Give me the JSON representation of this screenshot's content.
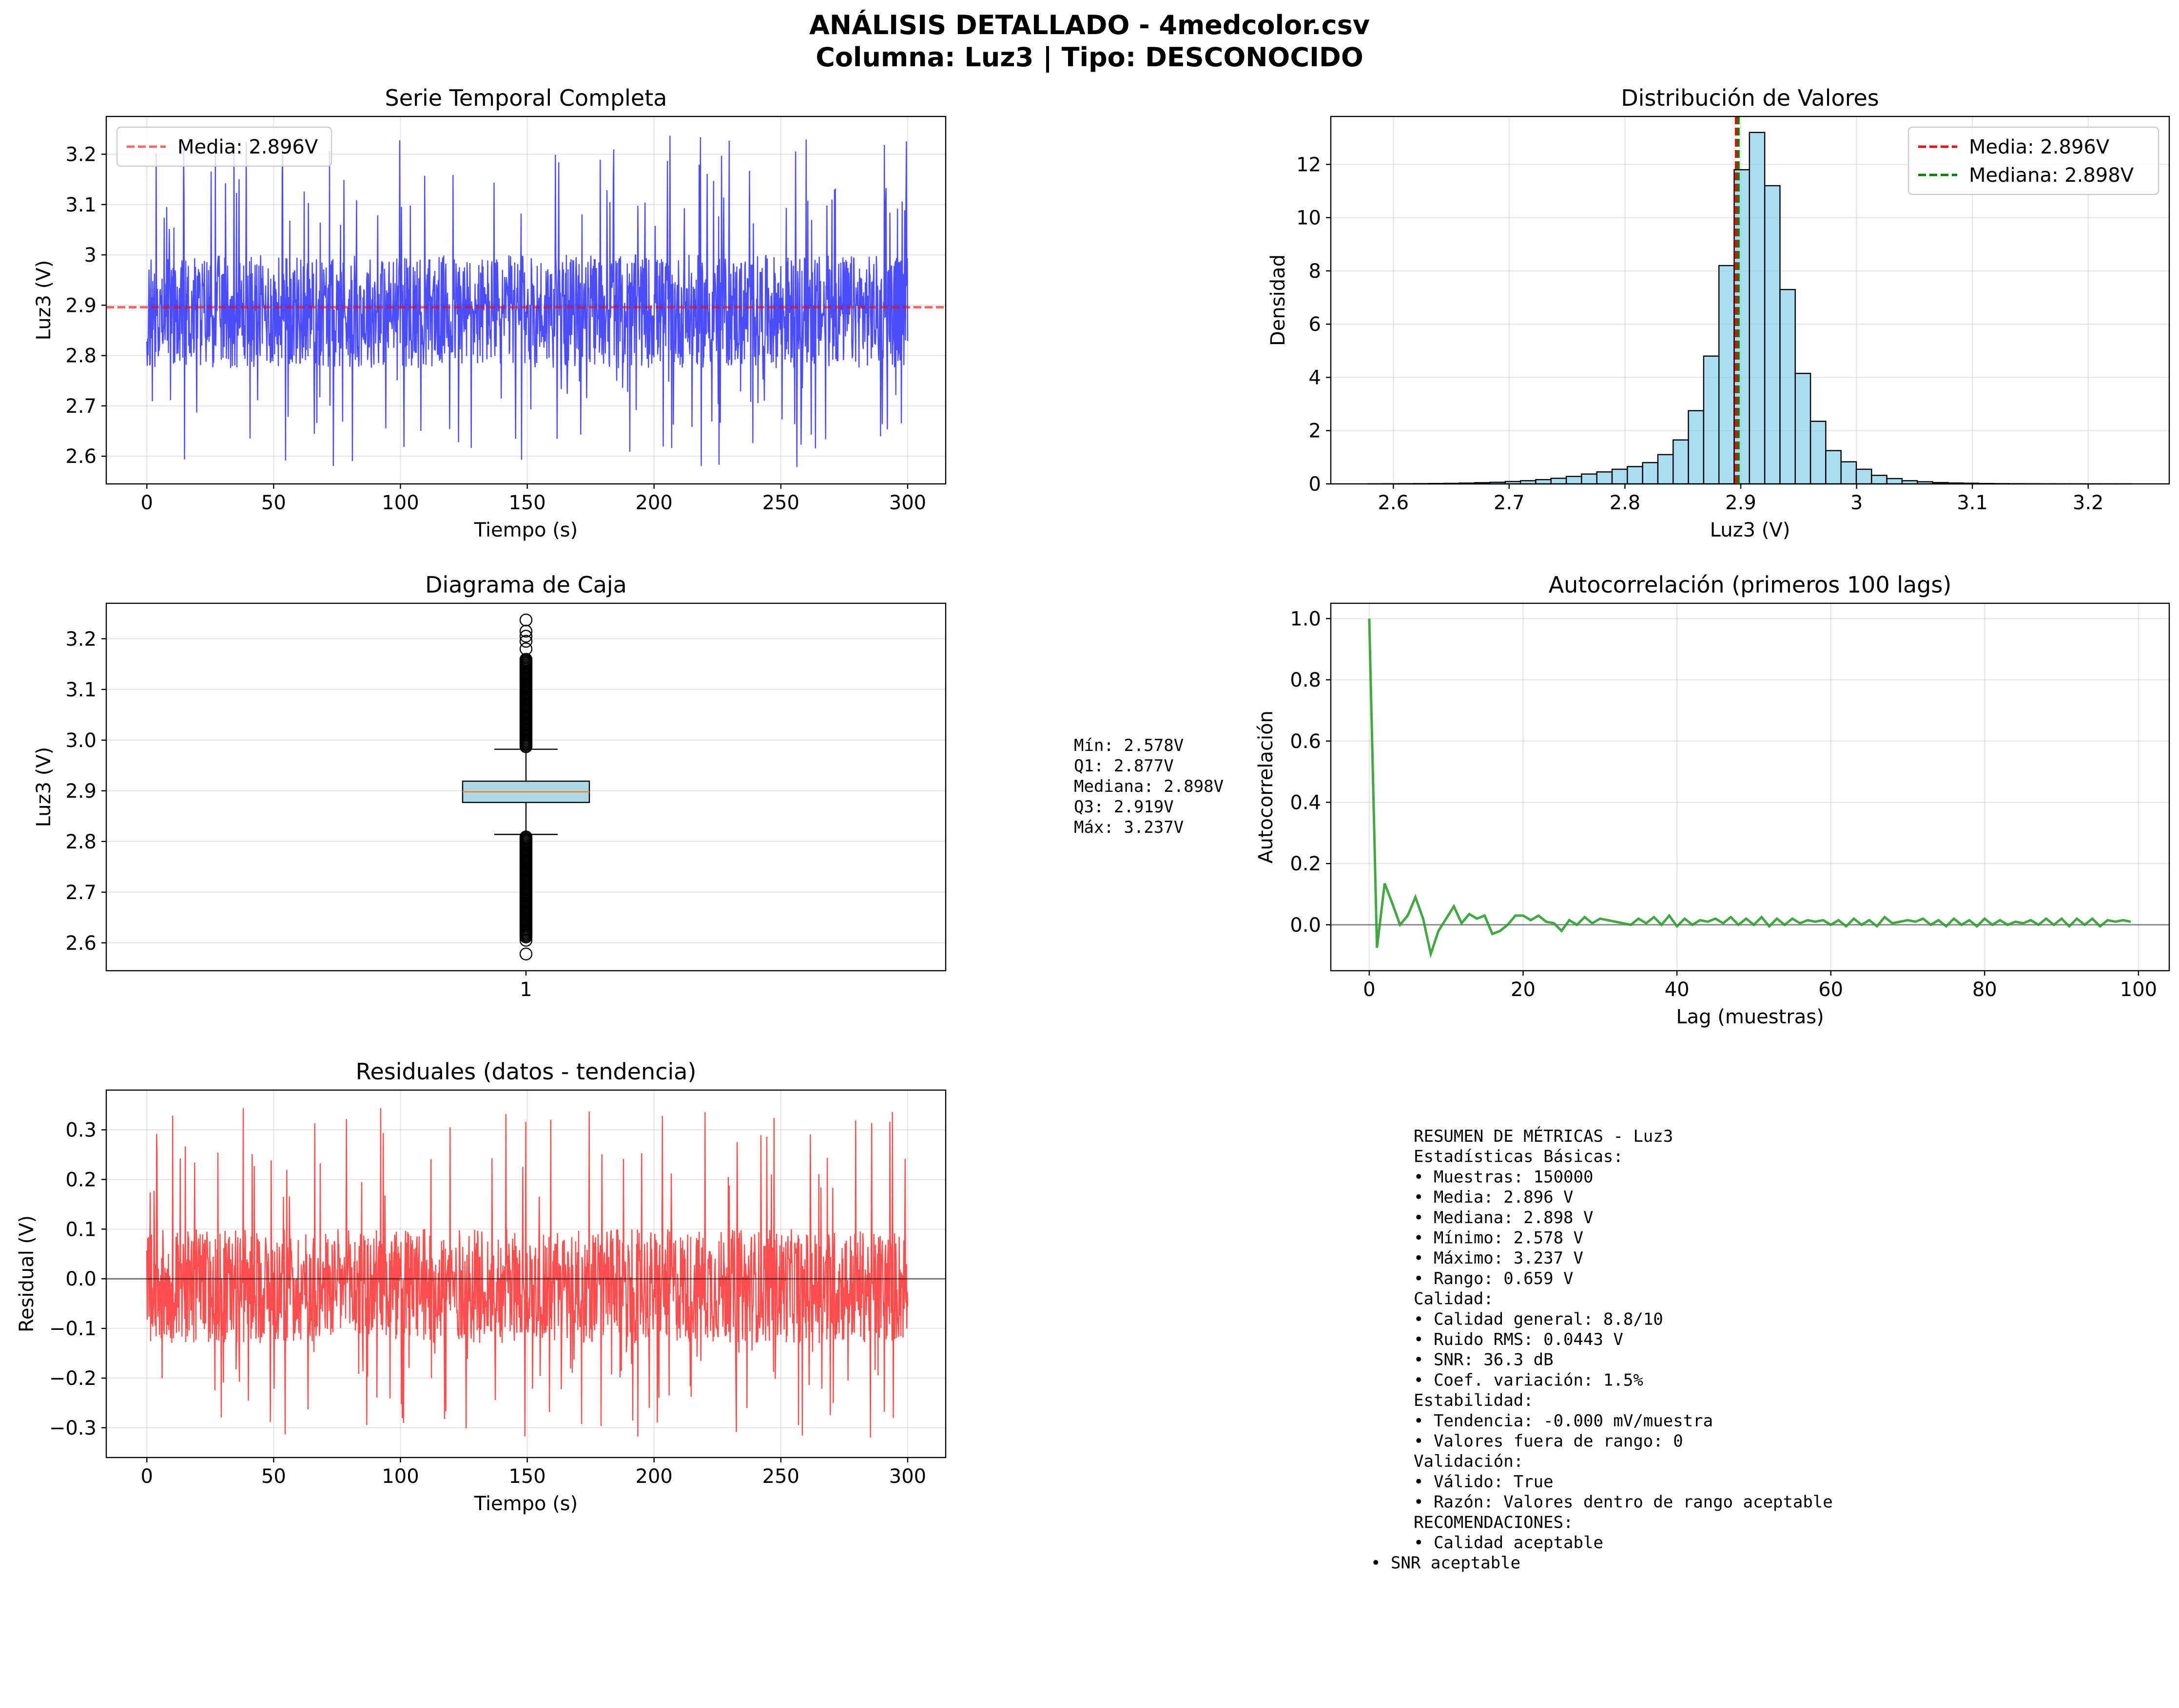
{
  "figure": {
    "title_line1": "ANÁLISIS DETALLADO - 4medcolor.csv",
    "title_line2": "Columna: Luz3 | Tipo: DESCONOCIDO"
  },
  "colors": {
    "series_blue": "#0000ff",
    "mean_red": "#ff0000",
    "median_green": "#008000",
    "hist_fill": "#87ceeb",
    "acf_green": "#2ca02c",
    "residual_red": "#ff0000",
    "box_fill": "#add8e6",
    "box_median": "#ff7f0e"
  },
  "chart_data": [
    {
      "id": "timeseries",
      "type": "line",
      "title": "Serie Temporal Completa",
      "xlabel": "Tiempo (s)",
      "ylabel": "Luz3 (V)",
      "xlim": [
        -16,
        315
      ],
      "ylim": [
        2.545,
        3.275
      ],
      "xticks": [
        0,
        50,
        100,
        150,
        200,
        250,
        300
      ],
      "yticks": [
        2.6,
        2.7,
        2.8,
        2.9,
        3.0,
        3.1,
        3.2
      ],
      "series": [
        {
          "name": "Luz3",
          "x_range": [
            0,
            300
          ],
          "mean": 2.896,
          "core_band": [
            2.775,
            3.0
          ],
          "min": 2.578,
          "max": 3.237,
          "samples": 150000
        }
      ],
      "hline": {
        "y": 2.896,
        "label": "Media: 2.896V"
      },
      "legend": "upper-left",
      "grid": true
    },
    {
      "id": "histogram",
      "type": "bar",
      "title": "Distribución de Valores",
      "xlabel": "Luz3 (V)",
      "ylabel": "Densidad",
      "xlim": [
        2.546,
        3.27
      ],
      "ylim": [
        0,
        13.8
      ],
      "xticks": [
        2.6,
        2.7,
        2.8,
        2.9,
        3.0,
        3.1,
        3.2
      ],
      "yticks": [
        0,
        2,
        4,
        6,
        8,
        10,
        12
      ],
      "bin_start": 2.578,
      "bin_width": 0.01318,
      "densities": [
        0.003,
        0.005,
        0.007,
        0.01,
        0.015,
        0.02,
        0.03,
        0.045,
        0.06,
        0.09,
        0.12,
        0.16,
        0.21,
        0.28,
        0.37,
        0.45,
        0.55,
        0.65,
        0.8,
        1.1,
        1.65,
        2.75,
        4.8,
        8.2,
        11.8,
        13.2,
        11.2,
        7.3,
        4.15,
        2.35,
        1.25,
        0.83,
        0.55,
        0.32,
        0.2,
        0.12,
        0.08,
        0.05,
        0.035,
        0.025,
        0.015,
        0.01,
        0.007,
        0.005,
        0.003,
        0.002,
        0.002,
        0.001,
        0.001,
        0.001
      ],
      "vlines": [
        {
          "x": 2.896,
          "label": "Media: 2.896V"
        },
        {
          "x": 2.898,
          "label": "Mediana: 2.898V"
        }
      ],
      "legend": "upper-right",
      "grid": true
    },
    {
      "id": "boxplot",
      "type": "box",
      "title": "Diagrama de Caja",
      "ylabel": "Luz3 (V)",
      "xticks": [
        "1"
      ],
      "ylim": [
        2.545,
        3.27
      ],
      "yticks": [
        2.6,
        2.7,
        2.8,
        2.9,
        3.0,
        3.1,
        3.2
      ],
      "stats": {
        "min": 2.578,
        "q1": 2.877,
        "median": 2.898,
        "q3": 2.919,
        "max": 3.237,
        "whisker_low": 2.814,
        "whisker_high": 2.982
      },
      "grid": true
    },
    {
      "id": "autocorrelation",
      "type": "line",
      "title": "Autocorrelación (primeros 100 lags)",
      "xlabel": "Lag (muestras)",
      "ylabel": "Autocorrelación",
      "xlim": [
        -5,
        104
      ],
      "ylim": [
        -0.15,
        1.05
      ],
      "xticks": [
        0,
        20,
        40,
        60,
        80,
        100
      ],
      "yticks": [
        0.0,
        0.2,
        0.4,
        0.6,
        0.8,
        1.0
      ],
      "x_start": 0,
      "values": [
        1.0,
        -0.075,
        0.135,
        0.07,
        0.0,
        0.03,
        0.09,
        0.02,
        -0.095,
        -0.02,
        0.02,
        0.06,
        0.005,
        0.035,
        0.02,
        0.03,
        -0.03,
        -0.02,
        0.0,
        0.03,
        0.03,
        0.015,
        0.03,
        0.01,
        0.005,
        -0.02,
        0.015,
        0.0,
        0.025,
        0.005,
        0.02,
        0.015,
        0.01,
        0.005,
        0.0,
        0.02,
        0.005,
        0.025,
        0.0,
        0.03,
        -0.005,
        0.02,
        0.0,
        0.015,
        0.01,
        0.02,
        0.005,
        0.025,
        0.0,
        0.02,
        0.0,
        0.025,
        -0.005,
        0.02,
        0.0,
        0.02,
        0.005,
        0.015,
        0.01,
        0.015,
        0.0,
        0.015,
        -0.005,
        0.02,
        0.0,
        0.015,
        -0.005,
        0.025,
        0.005,
        0.01,
        0.015,
        0.01,
        0.02,
        0.0,
        0.015,
        -0.005,
        0.02,
        0.0,
        0.015,
        -0.005,
        0.02,
        0.0,
        0.015,
        0.0,
        0.01,
        0.005,
        0.015,
        0.0,
        0.02,
        0.0,
        0.02,
        -0.005,
        0.02,
        0.0,
        0.02,
        -0.005,
        0.015,
        0.01,
        0.015,
        0.01
      ],
      "baseline": 0,
      "grid": true
    },
    {
      "id": "residuals",
      "type": "line",
      "title": "Residuales (datos - tendencia)",
      "xlabel": "Tiempo (s)",
      "ylabel": "Residual (V)",
      "xlim": [
        -16,
        315
      ],
      "ylim": [
        -0.36,
        0.38
      ],
      "xticks": [
        0,
        50,
        100,
        150,
        200,
        250,
        300
      ],
      "yticks": [
        -0.3,
        -0.2,
        -0.1,
        0.0,
        0.1,
        0.2,
        0.3
      ],
      "series": [
        {
          "name": "Residual",
          "x_range": [
            0,
            300
          ],
          "core_band": [
            -0.13,
            0.1
          ],
          "min": -0.32,
          "max": 0.345
        }
      ],
      "baseline": 0,
      "grid": true
    }
  ],
  "box_stats_text": [
    "Mín: 2.578V",
    "Q1: 2.877V",
    "Mediana: 2.898V",
    "Q3: 2.919V",
    "Máx: 3.237V"
  ],
  "summary_text": [
    "RESUMEN DE MÉTRICAS - Luz3",
    "",
    "Estadísticas Básicas:",
    "• Muestras: 150000",
    "• Media: 2.896 V",
    "• Mediana: 2.898 V",
    "• Mínimo: 2.578 V",
    "• Máximo: 3.237 V",
    "• Rango: 0.659 V",
    "",
    "Calidad:",
    "• Calidad general: 8.8/10",
    "• Ruido RMS: 0.0443 V",
    "• SNR: 36.3 dB",
    "• Coef. variación: 1.5%",
    "",
    "Estabilidad:",
    "• Tendencia: -0.000 mV/muestra",
    "• Valores fuera de rango: 0",
    "",
    "Validación:",
    "• Válido: True",
    "• Razón: Valores dentro de rango aceptable",
    "",
    "RECOMENDACIONES:",
    "• Calidad aceptable",
    "• SNR aceptable"
  ]
}
